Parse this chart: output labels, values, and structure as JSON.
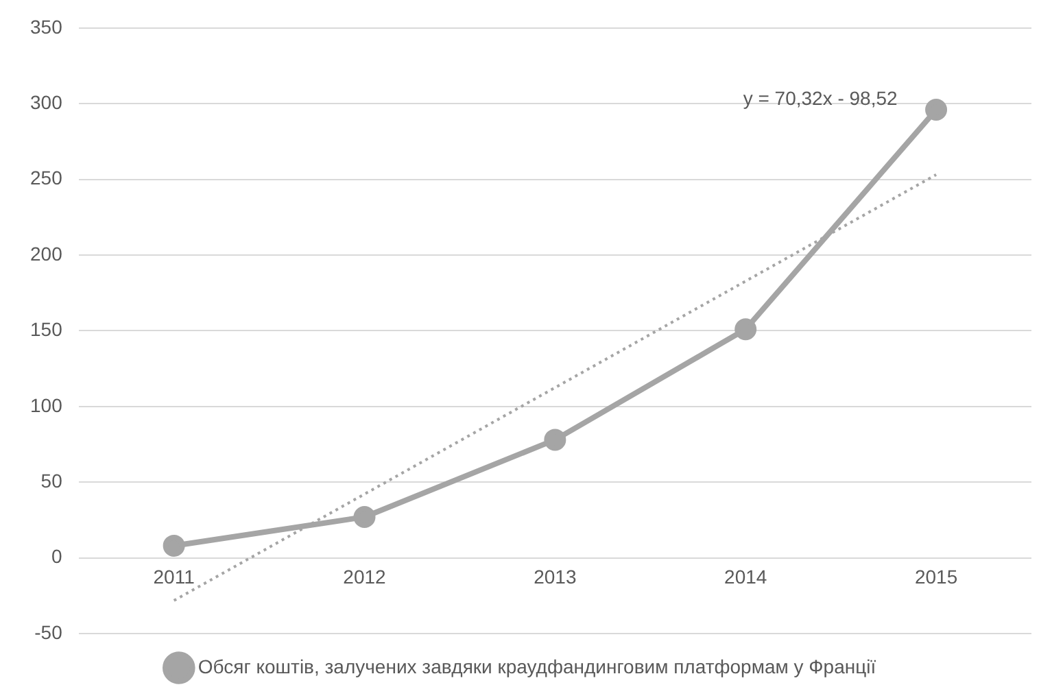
{
  "chart_data": {
    "type": "line",
    "categories": [
      "2011",
      "2012",
      "2013",
      "2014",
      "2015"
    ],
    "series": [
      {
        "name": "Обсяг коштів, залучених завдяки краудфандинговим платформам у Франції",
        "color": "#a5a5a5",
        "values": [
          8,
          27,
          78,
          151,
          296
        ]
      },
      {
        "type": "line",
        "line_style": "dotted",
        "marker": "none",
        "color": "#a5a5a5",
        "values": [
          -28.2,
          42.12,
          112.44,
          182.76,
          253.08
        ]
      }
    ],
    "ylim": [
      -50,
      350
    ],
    "yticks": [
      -50,
      0,
      50,
      100,
      150,
      200,
      250,
      300,
      350
    ],
    "grid": "y",
    "legend": "bottom",
    "marker": "circle",
    "line_style": "solid",
    "annotations": [
      "y = 70,32x - 98,52"
    ]
  }
}
